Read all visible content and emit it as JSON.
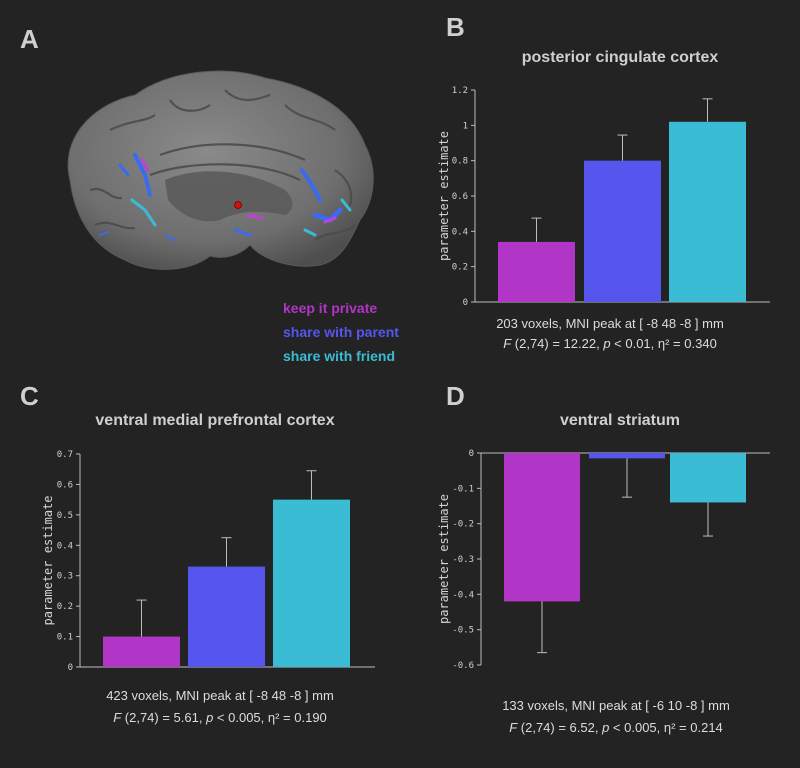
{
  "panel_letters": {
    "a": "A",
    "b": "B",
    "c": "C",
    "d": "D"
  },
  "legend": [
    {
      "label": "keep it private",
      "color": "#b135c6"
    },
    {
      "label": "share with parent",
      "color": "#5656ee"
    },
    {
      "label": "share with friend",
      "color": "#3abcd4"
    }
  ],
  "panels": {
    "b": {
      "voxels_line": "203 voxels, MNI peak at [ -8 48 -8 ] mm",
      "stats": {
        "F": "F",
        "df": " (2,74) = 12.22, ",
        "p": "p",
        "p_rest": " < 0.01, η² = 0.340"
      }
    },
    "c": {
      "voxels_line": "423 voxels, MNI peak at [ -8 48 -8 ] mm",
      "stats": {
        "F": "F",
        "df": " (2,74) = 5.61, ",
        "p": "p",
        "p_rest": " < 0.005, η² = 0.190"
      }
    },
    "d": {
      "voxels_line": "133 voxels, MNI peak at [ -6 10 -8 ] mm",
      "stats": {
        "F": "F",
        "df": " (2,74) = 6.52, ",
        "p": "p",
        "p_rest": " < 0.005, η² = 0.214"
      }
    }
  },
  "chart_data": [
    {
      "type": "bar",
      "title": "posterior cingulate cortex",
      "ylabel": "parameter estimate",
      "categories": [
        "keep it private",
        "share with parent",
        "share with friend"
      ],
      "values": [
        0.34,
        0.8,
        1.02
      ],
      "errors": [
        0.135,
        0.145,
        0.13
      ],
      "colors": [
        "#b135c6",
        "#5656ee",
        "#3abcd4"
      ],
      "ylim": [
        0,
        1.2
      ],
      "yticks": [
        0,
        0.2,
        0.4,
        0.6,
        0.8,
        1,
        1.2
      ],
      "ytick_labels": [
        "0",
        "0.2",
        "0.4",
        "0.6",
        "0.8",
        "1",
        "1.2"
      ]
    },
    {
      "type": "bar",
      "title": "ventral medial prefrontal cortex",
      "ylabel": "parameter estimate",
      "categories": [
        "keep it private",
        "share with parent",
        "share with friend"
      ],
      "values": [
        0.1,
        0.33,
        0.55
      ],
      "errors": [
        0.12,
        0.095,
        0.095
      ],
      "colors": [
        "#b135c6",
        "#5656ee",
        "#3abcd4"
      ],
      "ylim": [
        0,
        0.7
      ],
      "yticks": [
        0,
        0.1,
        0.2,
        0.3,
        0.4,
        0.5,
        0.6,
        0.7
      ],
      "ytick_labels": [
        "0",
        "0.1",
        "0.2",
        "0.3",
        "0.4",
        "0.5",
        "0.6",
        "0.7"
      ]
    },
    {
      "type": "bar",
      "title": "ventral striatum",
      "ylabel": "parameter estimate",
      "categories": [
        "keep it private",
        "share with parent",
        "share with friend"
      ],
      "values": [
        -0.42,
        -0.015,
        -0.14
      ],
      "errors": [
        0.145,
        0.11,
        0.095
      ],
      "colors": [
        "#b135c6",
        "#5656ee",
        "#3abcd4"
      ],
      "ylim": [
        -0.6,
        0
      ],
      "yticks": [
        0,
        -0.1,
        -0.2,
        -0.3,
        -0.4,
        -0.5,
        -0.6
      ],
      "ytick_labels": [
        "0",
        "-0.1",
        "-0.2",
        "-0.3",
        "-0.4",
        "-0.5",
        "-0.6"
      ]
    }
  ]
}
